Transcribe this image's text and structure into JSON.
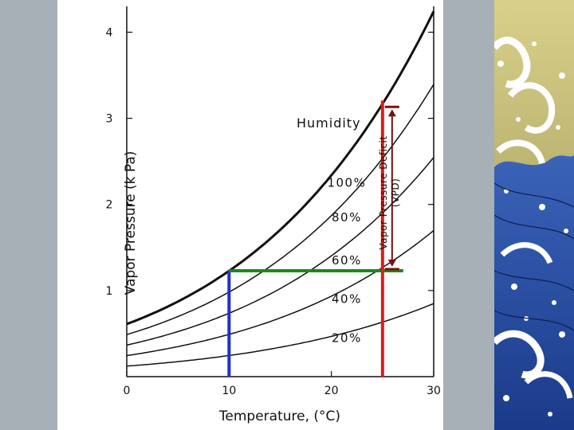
{
  "chart_data": {
    "type": "line",
    "title": "",
    "xlabel": "Temperature, (°C)",
    "ylabel": "Vapor Pressure (k Pa)",
    "xlim": [
      0,
      30
    ],
    "ylim": [
      0,
      4.3
    ],
    "x_ticks": [
      0,
      10,
      20,
      30
    ],
    "y_ticks": [
      1,
      2,
      3,
      4
    ],
    "legend_title": "Humidity",
    "grid": false,
    "series": [
      {
        "name": "100%",
        "x": [
          0,
          5,
          10,
          15,
          20,
          25,
          30
        ],
        "y": [
          0.61,
          0.87,
          1.23,
          1.7,
          2.34,
          3.17,
          4.24
        ]
      },
      {
        "name": "80%",
        "x": [
          0,
          5,
          10,
          15,
          20,
          25,
          30
        ],
        "y": [
          0.49,
          0.7,
          0.98,
          1.36,
          1.87,
          2.54,
          3.39
        ]
      },
      {
        "name": "60%",
        "x": [
          0,
          5,
          10,
          15,
          20,
          25,
          30
        ],
        "y": [
          0.37,
          0.52,
          0.74,
          1.02,
          1.4,
          1.9,
          2.54
        ]
      },
      {
        "name": "40%",
        "x": [
          0,
          5,
          10,
          15,
          20,
          25,
          30
        ],
        "y": [
          0.24,
          0.35,
          0.49,
          0.68,
          0.94,
          1.27,
          1.7
        ]
      },
      {
        "name": "20%",
        "x": [
          0,
          5,
          10,
          15,
          20,
          25,
          30
        ],
        "y": [
          0.12,
          0.17,
          0.25,
          0.34,
          0.47,
          0.63,
          0.85
        ]
      }
    ],
    "annotations": {
      "vpd_label_line1": "Vapor Pressure Deficit",
      "vpd_label_line2": "(VPD)",
      "dewpoint_x": 10,
      "dewpoint_y": 1.23,
      "air_temp_x": 25,
      "saturation_y": 3.17,
      "colors": {
        "dewpoint": "#1f2fd0",
        "actual_vapor_pressure": "#1a8a1a",
        "air_temperature": "#e01b1b",
        "vpd_arrow": "#7a1010"
      }
    }
  }
}
